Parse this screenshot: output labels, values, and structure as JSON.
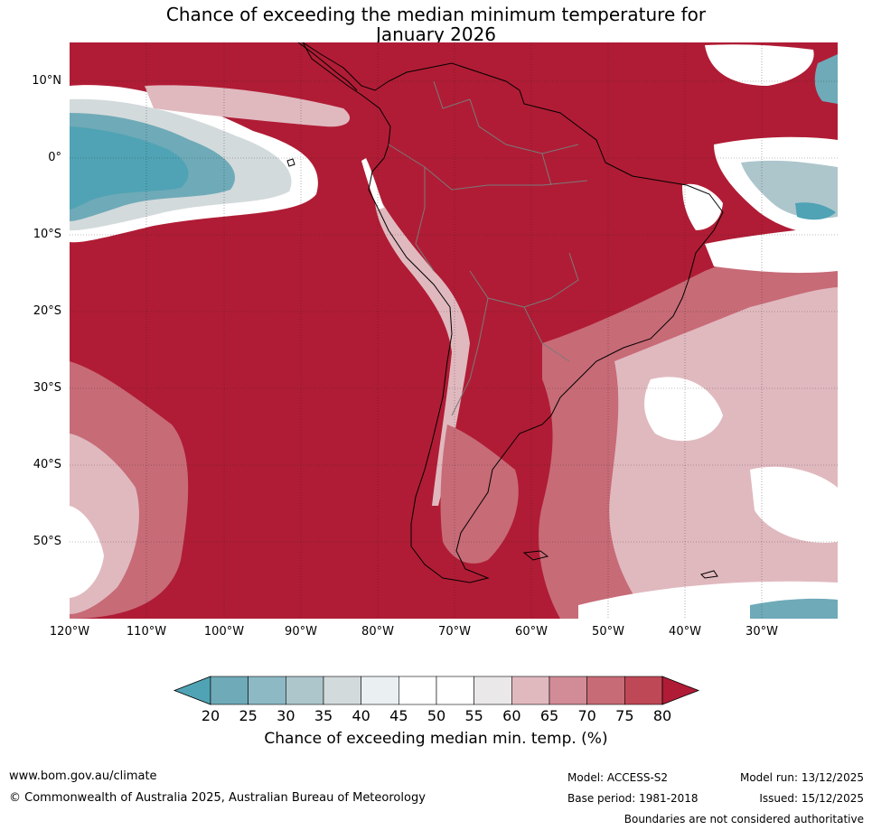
{
  "title": {
    "line1": "Chance of exceeding the median minimum temperature for",
    "line2": "January 2026"
  },
  "map": {
    "latitude_labels": [
      "10°N",
      "0°",
      "10°S",
      "20°S",
      "30°S",
      "40°S",
      "50°S"
    ],
    "longitude_labels": [
      "120°W",
      "110°W",
      "100°W",
      "90°W",
      "80°W",
      "70°W",
      "60°W",
      "50°W",
      "40°W",
      "30°W"
    ],
    "region": "South America",
    "dominant_category": "above 80"
  },
  "colorbar": {
    "ticks": [
      "20",
      "25",
      "30",
      "35",
      "40",
      "45",
      "50",
      "55",
      "60",
      "65",
      "70",
      "75",
      "80"
    ],
    "colors": [
      "#4fa3b4",
      "#6faab8",
      "#8cb9c4",
      "#adc6cc",
      "#d3dadb",
      "#eaf0f2",
      "#ffffff",
      "#ffffff",
      "#ebe8e9",
      "#e0b9bf",
      "#d28c97",
      "#c76b77",
      "#bf4857",
      "#b01c35"
    ],
    "label": "Chance of exceeding median min. temp. (%)"
  },
  "footer": {
    "website": "www.bom.gov.au/climate",
    "copyright": "© Commonwealth of Australia 2025, Australian Bureau of Meteorology",
    "model": "Model: ACCESS-S2",
    "base_period": "Base period: 1981-2018",
    "model_run": "Model run: 13/12/2025",
    "issued": "Issued: 15/12/2025",
    "disclaimer": "Boundaries are not considered authoritative"
  }
}
